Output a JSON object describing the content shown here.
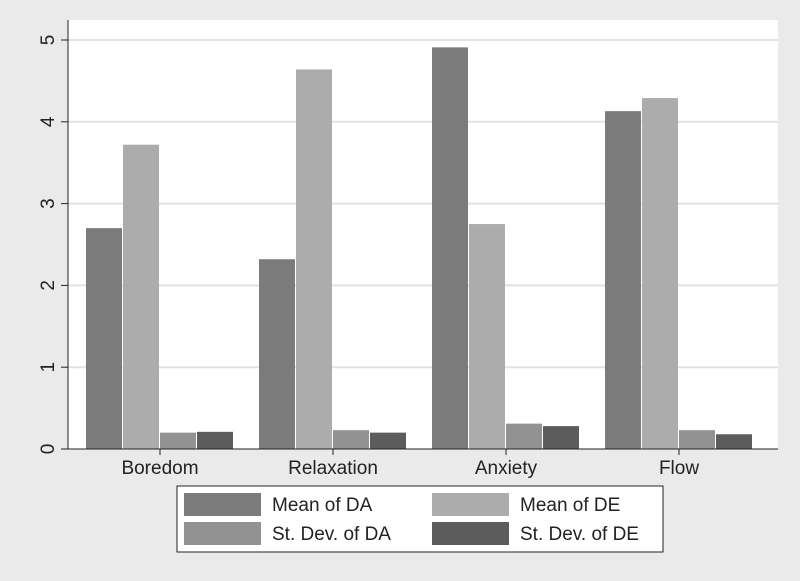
{
  "chart_data": {
    "type": "bar",
    "categories": [
      "Boredom",
      "Relaxation",
      "Anxiety",
      "Flow"
    ],
    "series": [
      {
        "name": "Mean of DA",
        "color": "#7b7b7b",
        "values": [
          2.7,
          2.32,
          4.91,
          4.13
        ]
      },
      {
        "name": "Mean of DE",
        "color": "#acacac",
        "values": [
          3.72,
          4.64,
          2.75,
          4.29
        ]
      },
      {
        "name": "St. Dev. of DA",
        "color": "#929292",
        "values": [
          0.2,
          0.23,
          0.31,
          0.23
        ]
      },
      {
        "name": "St. Dev. of DE",
        "color": "#5c5c5c",
        "values": [
          0.21,
          0.2,
          0.28,
          0.18
        ]
      }
    ],
    "ylim": [
      0,
      5
    ],
    "yticks": [
      "0",
      "1",
      "2",
      "3",
      "4",
      "5"
    ],
    "title": "",
    "xlabel": "",
    "ylabel": "",
    "grid": true,
    "legend_position": "bottom"
  }
}
